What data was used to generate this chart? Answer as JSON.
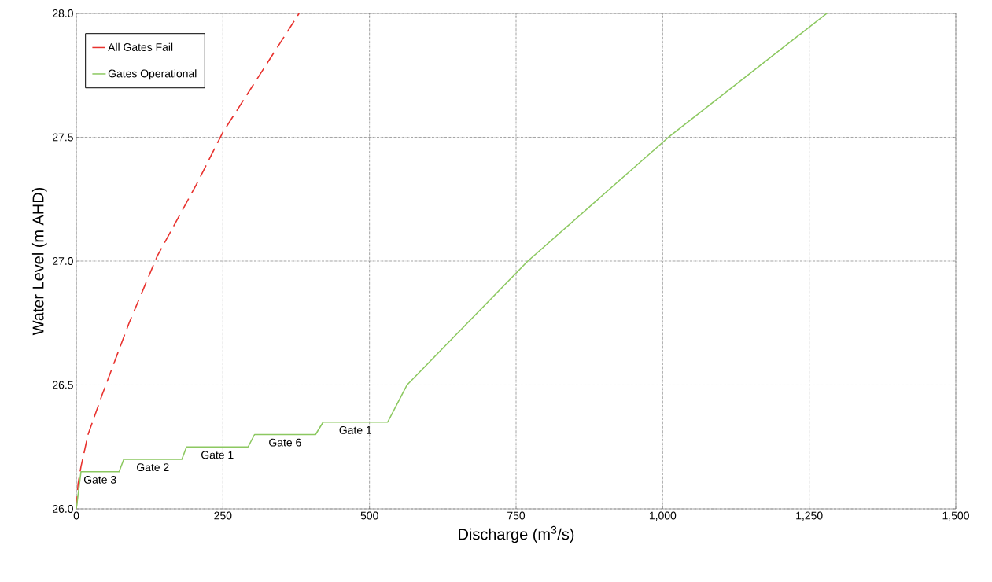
{
  "chart_data": {
    "type": "line",
    "xlabel": "Discharge (m$^{3}$/s)",
    "ylabel": "Water Level (m AHD)",
    "xlim": [
      0,
      1500
    ],
    "ylim": [
      26,
      28
    ],
    "xticks": [
      0,
      250,
      500,
      750,
      {
        "value": 1000,
        "label": "1,000"
      },
      {
        "value": 1250,
        "label": "1,250"
      },
      {
        "value": 1500,
        "label": "1,500"
      }
    ],
    "yticks": [
      {
        "value": 26,
        "label": "26.0"
      },
      26.5,
      {
        "value": 27,
        "label": "27.0"
      },
      27.5,
      {
        "value": 28,
        "label": "28.0"
      }
    ],
    "grid": true,
    "legend": "top left",
    "series": [
      {
        "name": "All Gates Fail",
        "color": "#e8322e",
        "line_style": "dashed",
        "x": [
          0,
          3,
          8,
          20,
          44,
          90,
          138,
          205,
          250,
          315,
          380
        ],
        "values": [
          26,
          26.1,
          26.17,
          26.3,
          26.46,
          26.75,
          27.02,
          27.31,
          27.52,
          27.76,
          28
        ]
      },
      {
        "name": "Gates Operational",
        "color": "#8cc860",
        "line_style": "solid",
        "x": [
          0,
          8,
          73,
          81,
          180,
          188,
          293,
          304,
          408,
          421,
          531,
          564,
          770,
          1010,
          1280
        ],
        "values": [
          26,
          26.15,
          26.15,
          26.2,
          26.2,
          26.25,
          26.25,
          26.3,
          26.3,
          26.35,
          26.35,
          26.5,
          27,
          27.5,
          28
        ]
      }
    ],
    "annotations": [
      "Gate 3",
      "Gate 2",
      "Gate 1",
      "Gate 6",
      "Gate 1"
    ]
  }
}
